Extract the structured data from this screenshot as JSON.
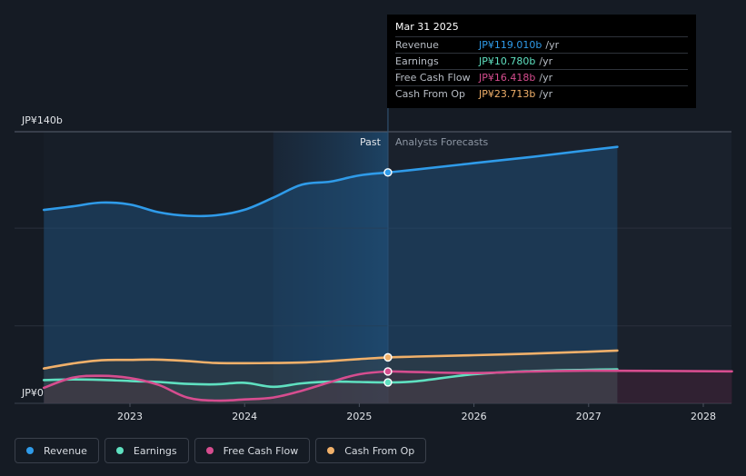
{
  "chart_data": {
    "type": "line",
    "y_axis": {
      "top_label": "JP¥140b",
      "bottom_label": "JP¥0",
      "ylim": [
        0,
        140
      ]
    },
    "x": [
      2022.25,
      2022.5,
      2022.75,
      2023.0,
      2023.25,
      2023.5,
      2023.75,
      2024.0,
      2024.25,
      2024.5,
      2024.75,
      2025.0,
      2025.25,
      2025.5,
      2026.0,
      2026.5,
      2027.0,
      2027.25
    ],
    "x_ticks": [
      "2023",
      "2024",
      "2025",
      "2026",
      "2027",
      "2028"
    ],
    "x_tick_values": [
      2023,
      2024,
      2025,
      2026,
      2027,
      2028
    ],
    "xlim": [
      2022.2,
      2028.25
    ],
    "forecast_start": 2025.25,
    "past_band_start": 2024.25,
    "region_labels": {
      "past": "Past",
      "forecast": "Analysts Forecasts"
    },
    "series": [
      {
        "name": "Revenue",
        "color": "#2f9be9",
        "points": [
          [
            2022.25,
            99.7
          ],
          [
            2022.5,
            101.5
          ],
          [
            2022.75,
            103.5
          ],
          [
            2023.0,
            102.5
          ],
          [
            2023.25,
            98.5
          ],
          [
            2023.5,
            96.7
          ],
          [
            2023.75,
            96.9
          ],
          [
            2024.0,
            99.8
          ],
          [
            2024.25,
            106.0
          ],
          [
            2024.5,
            112.7
          ],
          [
            2024.75,
            114.3
          ],
          [
            2025.0,
            117.5
          ],
          [
            2025.25,
            119.0
          ],
          [
            2025.5,
            120.5
          ],
          [
            2026.0,
            123.8
          ],
          [
            2026.5,
            127.0
          ],
          [
            2027.0,
            130.5
          ],
          [
            2027.25,
            132.2
          ]
        ]
      },
      {
        "name": "Earnings",
        "color": "#5fe0c0",
        "points": [
          [
            2022.25,
            12.0
          ],
          [
            2022.5,
            12.3
          ],
          [
            2022.75,
            12.1
          ],
          [
            2023.0,
            11.5
          ],
          [
            2023.25,
            11.0
          ],
          [
            2023.5,
            10.0
          ],
          [
            2023.75,
            9.8
          ],
          [
            2024.0,
            10.6
          ],
          [
            2024.25,
            8.5
          ],
          [
            2024.5,
            10.3
          ],
          [
            2024.75,
            11.2
          ],
          [
            2025.0,
            11.0
          ],
          [
            2025.25,
            10.8
          ],
          [
            2025.5,
            11.4
          ],
          [
            2026.0,
            15.0
          ],
          [
            2026.5,
            16.6
          ],
          [
            2027.0,
            17.3
          ],
          [
            2027.25,
            17.5
          ]
        ]
      },
      {
        "name": "Free Cash Flow",
        "color": "#d64d8f",
        "points": [
          [
            2022.25,
            8.0
          ],
          [
            2022.5,
            13.2
          ],
          [
            2022.75,
            14.2
          ],
          [
            2023.0,
            13.0
          ],
          [
            2023.25,
            9.5
          ],
          [
            2023.5,
            3.0
          ],
          [
            2023.75,
            1.4
          ],
          [
            2024.0,
            2.0
          ],
          [
            2024.25,
            3.0
          ],
          [
            2024.5,
            6.5
          ],
          [
            2024.75,
            11.0
          ],
          [
            2025.0,
            15.0
          ],
          [
            2025.25,
            16.4
          ],
          [
            2025.5,
            16.1
          ],
          [
            2026.0,
            15.6
          ],
          [
            2026.5,
            16.4
          ],
          [
            2027.0,
            16.8
          ],
          [
            2028.25,
            16.5
          ]
        ]
      },
      {
        "name": "Cash From Op",
        "color": "#f0b06a",
        "points": [
          [
            2022.25,
            18.0
          ],
          [
            2022.5,
            20.5
          ],
          [
            2022.75,
            22.2
          ],
          [
            2023.0,
            22.4
          ],
          [
            2023.25,
            22.5
          ],
          [
            2023.5,
            21.8
          ],
          [
            2023.75,
            20.8
          ],
          [
            2024.0,
            20.7
          ],
          [
            2024.25,
            20.8
          ],
          [
            2024.5,
            21.0
          ],
          [
            2024.75,
            21.8
          ],
          [
            2025.0,
            22.8
          ],
          [
            2025.25,
            23.7
          ],
          [
            2025.5,
            24.1
          ],
          [
            2026.0,
            24.8
          ],
          [
            2026.5,
            25.6
          ],
          [
            2027.0,
            26.6
          ],
          [
            2027.25,
            27.2
          ]
        ]
      }
    ],
    "tooltip": {
      "date": "Mar 31 2025",
      "rows": [
        {
          "label": "Revenue",
          "value": "JP¥119.010b",
          "unit": "/yr",
          "color": "#2f9be9"
        },
        {
          "label": "Earnings",
          "value": "JP¥10.780b",
          "unit": "/yr",
          "color": "#5fe0c0"
        },
        {
          "label": "Free Cash Flow",
          "value": "JP¥16.418b",
          "unit": "/yr",
          "color": "#d64d8f"
        },
        {
          "label": "Cash From Op",
          "value": "JP¥23.713b",
          "unit": "/yr",
          "color": "#f0b06a"
        }
      ]
    },
    "legend": [
      {
        "label": "Revenue",
        "color": "#2f9be9"
      },
      {
        "label": "Earnings",
        "color": "#5fe0c0"
      },
      {
        "label": "Free Cash Flow",
        "color": "#d64d8f"
      },
      {
        "label": "Cash From Op",
        "color": "#f0b06a"
      }
    ]
  }
}
